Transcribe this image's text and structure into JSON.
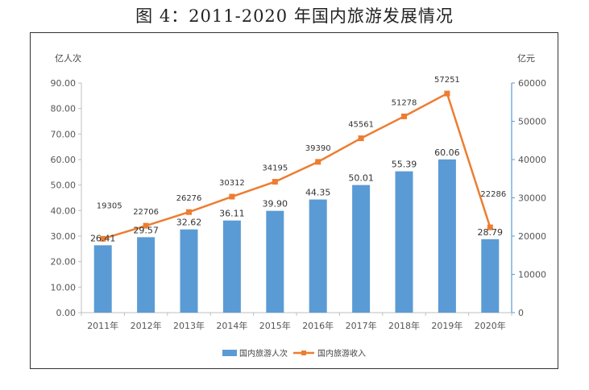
{
  "title": "图 4：2011-2020 年国内旅游发展情况",
  "chart_data": {
    "type": "bar",
    "categories": [
      "2011年",
      "2012年",
      "2013年",
      "2014年",
      "2015年",
      "2016年",
      "2017年",
      "2018年",
      "2019年",
      "2020年"
    ],
    "series": [
      {
        "name": "国内旅游人次",
        "type": "bar",
        "axis": "left",
        "values": [
          26.41,
          29.57,
          32.62,
          36.11,
          39.9,
          44.35,
          50.01,
          55.39,
          60.06,
          28.79
        ],
        "labels": [
          "26.41",
          "29.57",
          "32.62",
          "36.11",
          "39.90",
          "44.35",
          "50.01",
          "55.39",
          "60.06",
          "28.79"
        ],
        "color": "#5b9bd5"
      },
      {
        "name": "国内旅游收入",
        "type": "line",
        "axis": "right",
        "values": [
          19305,
          22706,
          26276,
          30312,
          34195,
          39390,
          45561,
          51278,
          57251,
          22286
        ],
        "labels": [
          "19305",
          "22706",
          "26276",
          "30312",
          "34195",
          "39390",
          "45561",
          "51278",
          "57251",
          "22286"
        ],
        "color": "#ed7d31"
      }
    ],
    "ylabel": "亿人次",
    "y2label": "亿元",
    "ylim": [
      0,
      90
    ],
    "y2lim": [
      0,
      60000
    ],
    "yticks": [
      "0.00",
      "10.00",
      "20.00",
      "30.00",
      "40.00",
      "50.00",
      "60.00",
      "70.00",
      "80.00",
      "90.00"
    ],
    "y2ticks": [
      "0",
      "10000",
      "20000",
      "30000",
      "40000",
      "50000",
      "60000"
    ],
    "grid": false,
    "legend": "bottom"
  }
}
